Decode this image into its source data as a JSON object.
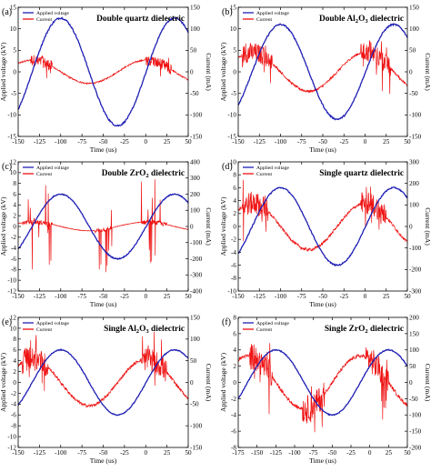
{
  "figure": {
    "legend": {
      "voltage": "Applied voltage",
      "current": "Current"
    },
    "xlabel": "Time (us)",
    "ylabel_left": "Applied voltage (kV)",
    "ylabel_right": "Current (mA)",
    "colors": {
      "voltage": "#1f1fb4",
      "current": "#ee1111"
    }
  },
  "chart_data": [
    {
      "type": "line",
      "letter": "(a)",
      "title_pre": "Double quartz dielectric",
      "title_sub": "",
      "title_post": "",
      "xlim": [
        -150,
        50
      ],
      "xticks": [
        -150,
        -125,
        -100,
        -75,
        -50,
        -25,
        0,
        25,
        50
      ],
      "ylim_left": [
        -15,
        15
      ],
      "yticks_left": [
        -15,
        -10,
        -5,
        0,
        5,
        10,
        15
      ],
      "ylim_right": [
        -150,
        150
      ],
      "yticks_right": [
        -150,
        -100,
        -50,
        0,
        50,
        100,
        150
      ],
      "voltage": {
        "amplitude_kV": 12.5,
        "peaks_us": [
          -100,
          33
        ],
        "troughs_us": [
          -33
        ]
      },
      "current": {
        "amplitude_mA": 30,
        "spike_regions_us": [
          [
            -135,
            -110
          ],
          [
            0,
            30
          ]
        ]
      }
    },
    {
      "type": "line",
      "letter": "(b)",
      "title_pre": "Double Al",
      "title_sub": "2",
      "title_post": "O3 dielectric",
      "xlim": [
        -150,
        50
      ],
      "xticks": [
        -150,
        -125,
        -100,
        -75,
        -50,
        -25,
        0,
        25,
        50
      ],
      "ylim_left": [
        -15,
        15
      ],
      "yticks_left": [
        -15,
        -10,
        -5,
        0,
        5,
        10,
        15
      ],
      "ylim_right": [
        -150,
        150
      ],
      "yticks_right": [
        -150,
        -100,
        -50,
        0,
        50,
        100,
        150
      ],
      "voltage": {
        "amplitude_kV": 11,
        "peaks_us": [
          -100,
          33
        ],
        "troughs_us": [
          -33
        ]
      },
      "current": {
        "amplitude_mA": 50,
        "spike_regions_us": [
          [
            -145,
            -110
          ],
          [
            -5,
            30
          ]
        ]
      }
    },
    {
      "type": "line",
      "letter": "(c)",
      "title_pre": "Double ZrO",
      "title_sub": "2",
      "title_post": " dielectric",
      "xlim": [
        -150,
        50
      ],
      "xticks": [
        -150,
        -125,
        -100,
        -75,
        -50,
        -25,
        0,
        25,
        50
      ],
      "ylim_left": [
        -12,
        12
      ],
      "yticks_left": [
        -12,
        -10,
        -8,
        -6,
        -4,
        -2,
        0,
        2,
        4,
        6,
        8,
        10,
        12
      ],
      "ylim_right": [
        -400,
        400
      ],
      "yticks_right": [
        -400,
        -300,
        -200,
        -100,
        0,
        100,
        200,
        300,
        400
      ],
      "voltage": {
        "amplitude_kV": 6,
        "peaks_us": [
          -100,
          33
        ],
        "troughs_us": [
          -33
        ]
      },
      "current": {
        "amplitude_mA": 30,
        "spike_regions_us": [
          [
            -145,
            -110
          ],
          [
            -60,
            -40
          ],
          [
            -5,
            25
          ]
        ],
        "max_spike_mA": 330
      }
    },
    {
      "type": "line",
      "letter": "(d)",
      "title_pre": "Single quartz dielectric",
      "title_sub": "",
      "title_post": "",
      "xlim": [
        -150,
        50
      ],
      "xticks": [
        -150,
        -125,
        -100,
        -75,
        -50,
        -25,
        0,
        25,
        50
      ],
      "ylim_left": [
        -10,
        10
      ],
      "yticks_left": [
        -10,
        -8,
        -6,
        -4,
        -2,
        0,
        2,
        4,
        6,
        8,
        10
      ],
      "ylim_right": [
        -300,
        300
      ],
      "yticks_right": [
        -300,
        -200,
        -100,
        0,
        100,
        200,
        300
      ],
      "voltage": {
        "amplitude_kV": 6,
        "peaks_us": [
          -100,
          33
        ],
        "troughs_us": [
          -33
        ]
      },
      "current": {
        "amplitude_mA": 120,
        "spike_regions_us": [
          [
            -145,
            -115
          ],
          [
            -5,
            25
          ]
        ],
        "max_spike_mA": 260
      }
    },
    {
      "type": "line",
      "letter": "(e)",
      "title_pre": "Single Al",
      "title_sub": "2",
      "title_post": "O3 dielectric",
      "xlim": [
        -150,
        50
      ],
      "xticks": [
        -150,
        -125,
        -100,
        -75,
        -50,
        -25,
        0,
        25,
        50
      ],
      "ylim_left": [
        -12,
        12
      ],
      "yticks_left": [
        -12,
        -10,
        -8,
        -6,
        -4,
        -2,
        0,
        2,
        4,
        6,
        8,
        10,
        12
      ],
      "ylim_right": [
        -150,
        150
      ],
      "yticks_right": [
        -150,
        -100,
        -50,
        0,
        50,
        100,
        150
      ],
      "voltage": {
        "amplitude_kV": 6,
        "peaks_us": [
          -100,
          33
        ],
        "troughs_us": [
          -33
        ]
      },
      "current": {
        "amplitude_mA": 60,
        "spike_regions_us": [
          [
            -145,
            -115
          ],
          [
            -5,
            25
          ]
        ],
        "max_spike_mA": 130
      }
    },
    {
      "type": "line",
      "letter": "(f)",
      "title_pre": "Single ZrO",
      "title_sub": "2",
      "title_post": " dielectric",
      "xlim": [
        -175,
        50
      ],
      "xticks": [
        -175,
        -150,
        -125,
        -100,
        -75,
        -50,
        -25,
        0,
        25,
        50
      ],
      "ylim_left": [
        -8,
        8
      ],
      "yticks_left": [
        -8,
        -6,
        -4,
        -2,
        0,
        2,
        4,
        6,
        8
      ],
      "ylim_right": [
        -200,
        200
      ],
      "yticks_right": [
        -200,
        -150,
        -100,
        -50,
        0,
        50,
        100,
        150,
        200
      ],
      "voltage": {
        "amplitude_kV": 4,
        "peaks_us": [
          -125,
          25
        ],
        "troughs_us": [
          -50
        ]
      },
      "current": {
        "amplitude_mA": 90,
        "spike_regions_us": [
          [
            -160,
            -130
          ],
          [
            -90,
            -60
          ],
          [
            -5,
            25
          ]
        ],
        "max_spike_mA": 160
      }
    }
  ]
}
